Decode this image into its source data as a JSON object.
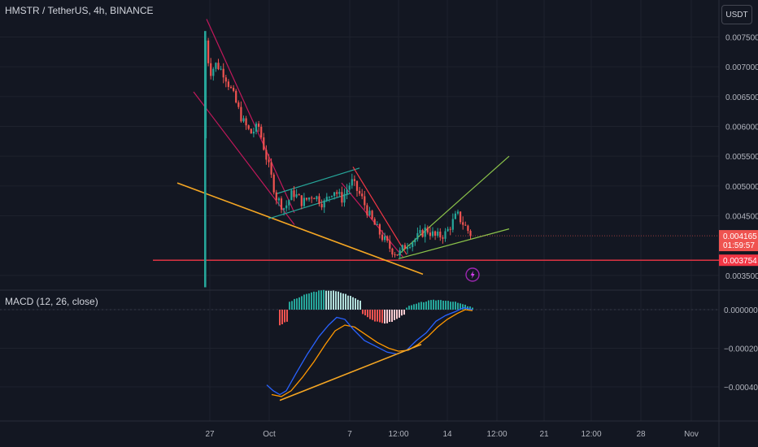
{
  "header": {
    "symbol_title": "HMSTR / TetherUS, 4h, BINANCE",
    "currency_button": "USDT"
  },
  "macd": {
    "label": "MACD (12, 26, close)"
  },
  "colors": {
    "background": "#131722",
    "bull": "#26a69a",
    "bear": "#ef5350",
    "macd_line": "#2962ff",
    "signal_line": "#ff9800",
    "trend_orange": "#f5a623",
    "channel_red": "#c2185b",
    "channel_green": "#26a69a",
    "wedge_green": "#8bc34a",
    "support_red": "#f23645"
  },
  "icons": {
    "alert": "lightning-icon"
  },
  "chart_data": [
    {
      "type": "candlestick",
      "title": "HMSTR / TetherUS, 4h, BINANCE",
      "y_axis": {
        "ticks": [
          "0.007500",
          "0.007000",
          "0.006500",
          "0.006000",
          "0.005500",
          "0.005000",
          "0.004500",
          "0.003500"
        ],
        "tick_values": [
          0.0075,
          0.007,
          0.0065,
          0.006,
          0.0055,
          0.005,
          0.0045,
          0.0035
        ],
        "range": [
          0.0033,
          0.0078
        ]
      },
      "x_axis": {
        "ticks": [
          "27",
          "Oct",
          "7",
          "12:00",
          "14",
          "12:00",
          "21",
          "12:00",
          "28",
          "Nov"
        ]
      },
      "last_price": {
        "value": "0.004165",
        "countdown": "01:59:57"
      },
      "support_level": {
        "value": "0.003754"
      },
      "summary": {
        "listing_high": 0.0076,
        "early_decline_to": 0.0048,
        "consolidation_range": [
          0.0046,
          0.0051
        ],
        "low": 0.00385,
        "recent_high": 0.0046,
        "current": 0.004165
      }
    },
    {
      "type": "macd",
      "title": "MACD (12, 26, close)",
      "y_axis": {
        "ticks": [
          "0.000000",
          "−0.000200",
          "−0.000400"
        ],
        "tick_values": [
          0,
          -0.0002,
          -0.0004
        ]
      }
    }
  ]
}
